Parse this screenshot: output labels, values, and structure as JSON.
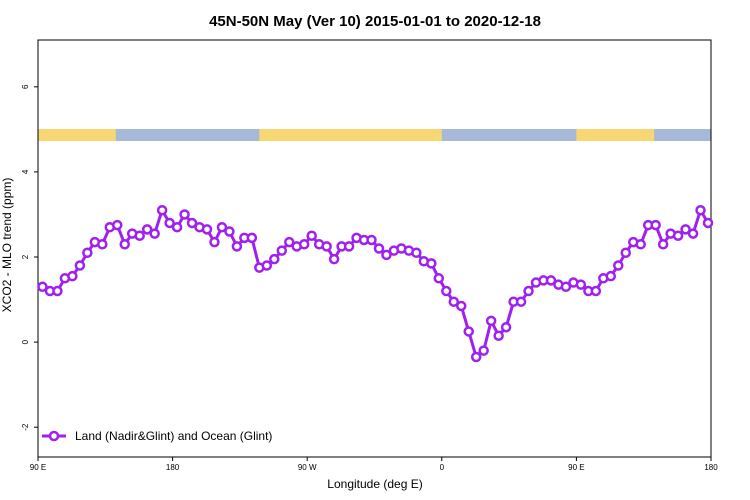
{
  "chart_data": {
    "type": "line",
    "title": "45N-50N May (Ver 10)   2015-01-01 to 2020-12-18",
    "xlabel": "Longitude (deg E)",
    "ylabel": "XCO2 - MLO trend (ppm)",
    "x_ticks": [
      {
        "value": 90,
        "label": "90 E"
      },
      {
        "value": 180,
        "label": "180"
      },
      {
        "value": 270,
        "label": "90 W"
      },
      {
        "value": 360,
        "label": "0"
      },
      {
        "value": 450,
        "label": "90 E"
      },
      {
        "value": 540,
        "label": "180"
      }
    ],
    "y_ticks": [
      {
        "value": -2,
        "label": "-2"
      },
      {
        "value": 0,
        "label": "0"
      },
      {
        "value": 2,
        "label": "2"
      },
      {
        "value": 4,
        "label": "4"
      },
      {
        "value": 6,
        "label": "6"
      }
    ],
    "xlim": [
      90,
      540
    ],
    "ylim": [
      -2.7,
      7.1
    ],
    "grid": false,
    "legend_position": "bottom-left",
    "land_ocean_strip": {
      "land_color": "#f7d774",
      "ocean_color": "#a7b9d9",
      "land_ranges": [
        [
          90,
          142
        ],
        [
          238,
          360
        ],
        [
          450,
          502
        ],
        [
          540,
          540
        ]
      ]
    },
    "series": [
      {
        "name": "Land (Nadir&Glint) and Ocean (Glint)",
        "color": "#a020f0",
        "x": [
          93,
          98,
          103,
          108,
          113,
          118,
          123,
          128,
          133,
          138,
          143,
          148,
          153,
          158,
          163,
          168,
          173,
          178,
          183,
          188,
          193,
          198,
          203,
          208,
          213,
          218,
          223,
          228,
          233,
          238,
          243,
          248,
          253,
          258,
          263,
          268,
          273,
          278,
          283,
          288,
          293,
          298,
          303,
          308,
          313,
          318,
          323,
          328,
          333,
          338,
          343,
          348,
          353,
          358,
          363,
          368,
          373,
          378,
          383,
          388,
          393,
          398,
          403,
          408,
          413,
          418,
          423,
          428,
          433,
          438,
          443,
          448,
          453,
          458,
          463,
          468,
          473,
          478,
          483,
          488,
          493,
          498,
          503,
          508,
          513,
          518,
          523,
          528,
          533,
          538
        ],
        "values": [
          1.3,
          1.2,
          1.2,
          1.5,
          1.55,
          1.8,
          2.1,
          2.35,
          2.3,
          2.7,
          2.75,
          2.3,
          2.55,
          2.5,
          2.65,
          2.55,
          3.1,
          2.8,
          2.7,
          3.0,
          2.8,
          2.7,
          2.65,
          2.35,
          2.7,
          2.6,
          2.25,
          2.45,
          2.45,
          1.75,
          1.8,
          1.95,
          2.15,
          2.35,
          2.25,
          2.3,
          2.5,
          2.3,
          2.25,
          1.95,
          2.25,
          2.25,
          2.45,
          2.4,
          2.4,
          2.2,
          2.05,
          2.15,
          2.2,
          2.15,
          2.1,
          1.9,
          1.85,
          1.5,
          1.2,
          0.95,
          0.85,
          0.25,
          -0.35,
          -0.2,
          0.5,
          0.15,
          0.35,
          0.95,
          0.95,
          1.2,
          1.4,
          1.45,
          1.45,
          1.35,
          1.3,
          1.4,
          1.35,
          1.2,
          1.2,
          1.5,
          1.55,
          1.8,
          2.1,
          2.35,
          2.3,
          2.75,
          2.75,
          2.3,
          2.55,
          2.5,
          2.65,
          2.55,
          3.1,
          2.8
        ]
      }
    ]
  }
}
